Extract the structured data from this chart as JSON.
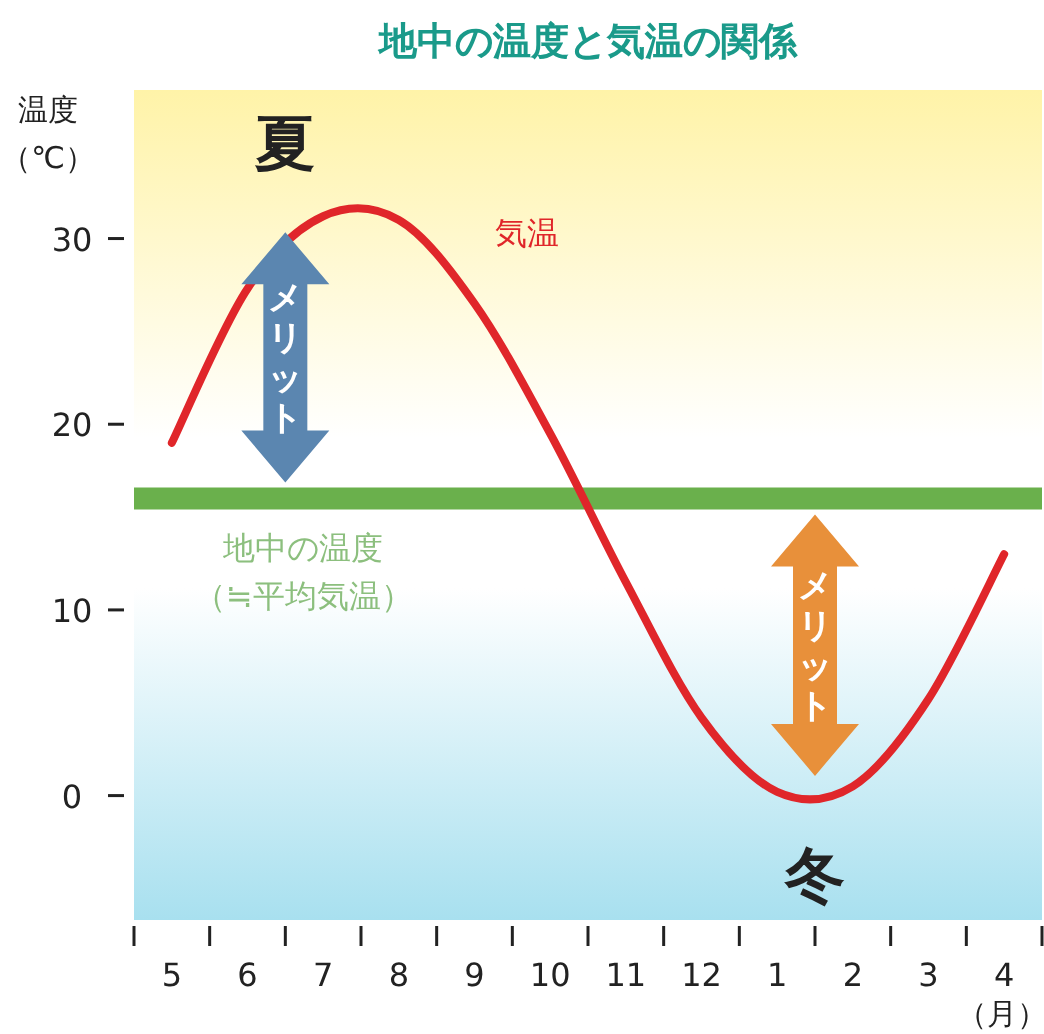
{
  "chart_data": {
    "type": "line",
    "title": "地中の温度と気温の関係",
    "ylabel": "温度（℃）",
    "xlabel": "（月）",
    "categories": [
      "5",
      "6",
      "7",
      "8",
      "9",
      "10",
      "11",
      "12",
      "1",
      "2",
      "3",
      "4"
    ],
    "series": [
      {
        "name": "気温",
        "color": "#e0262a",
        "values": [
          19,
          27.3,
          31.2,
          31,
          26.5,
          19.5,
          11.5,
          4.2,
          0.2,
          0.5,
          5.2,
          13
        ]
      }
    ],
    "ylim": [
      -6.7,
      38
    ],
    "yticks": [
      0,
      10,
      20,
      30
    ],
    "ref_lines": [
      {
        "axis": "y",
        "value": 16,
        "label": "地中の温度（≒平均気温）",
        "color": "#6ab04c"
      }
    ],
    "annotations": [
      "夏",
      "冬",
      "メリット",
      "メリット"
    ],
    "marker": "none",
    "line_style": "solid"
  }
}
